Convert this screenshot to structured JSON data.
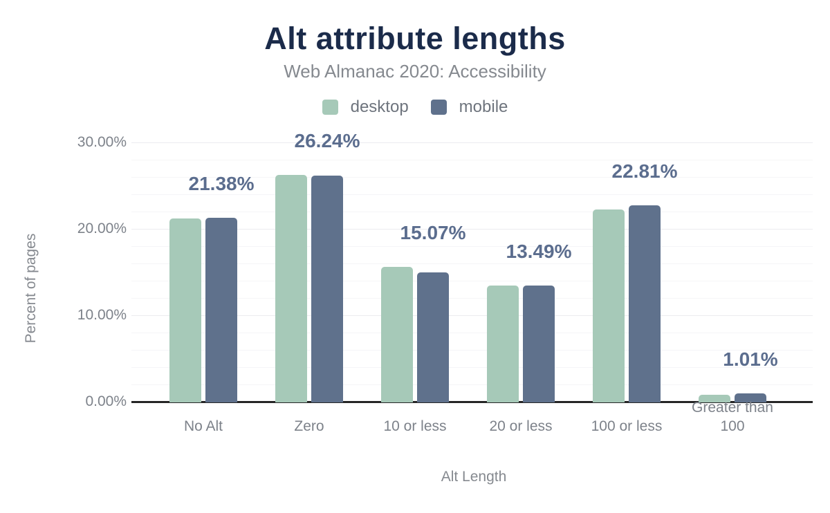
{
  "chart_data": {
    "type": "bar",
    "title": "Alt attribute lengths",
    "subtitle": "Web Almanac 2020: Accessibility",
    "xlabel": "Alt Length",
    "ylabel": "Percent of pages",
    "categories": [
      "No Alt",
      "Zero",
      "10 or less",
      "20 or less",
      "100 or less",
      "Greater than 100"
    ],
    "series": [
      {
        "name": "desktop",
        "color": "#a6c9b8",
        "values": [
          21.3,
          26.3,
          15.7,
          13.5,
          22.3,
          0.9
        ]
      },
      {
        "name": "mobile",
        "color": "#5f718c",
        "values": [
          21.38,
          26.24,
          15.07,
          13.49,
          22.81,
          1.01
        ]
      }
    ],
    "data_labels": [
      "21.38%",
      "26.24%",
      "15.07%",
      "13.49%",
      "22.81%",
      "1.01%"
    ],
    "data_labels_source": "mobile series values shown above each bar pair",
    "y_ticks": [
      {
        "label": "0.00%",
        "value": 0
      },
      {
        "label": "10.00%",
        "value": 10
      },
      {
        "label": "20.00%",
        "value": 20
      },
      {
        "label": "30.00%",
        "value": 30
      }
    ],
    "ylim": [
      0,
      31
    ],
    "grid": "horizontal minor lines every 2%, major every 10%",
    "legend_position": "top-center"
  },
  "colors": {
    "title": "#1b2b4a",
    "subtitle": "#85898f",
    "axis_text": "#7d828a",
    "value_label": "#5b6d8e",
    "axis_line": "#252525",
    "gridline_minor": "#f5f5f7",
    "gridline_major": "#ebebef",
    "background": "#ffffff"
  }
}
